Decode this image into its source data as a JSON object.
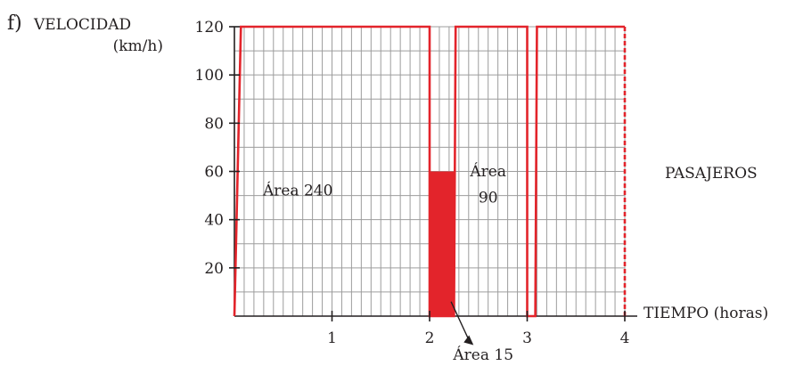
{
  "chart_data": {
    "type": "line",
    "panel_label": "f)",
    "ylabel": "VELOCIDAD",
    "yunit": "(km/h)",
    "xlabel": "TIEMPO (horas)",
    "side_label": "PASAJEROS",
    "xlim": [
      0,
      4
    ],
    "ylim": [
      0,
      120
    ],
    "x_ticks": [
      1,
      2,
      3,
      4
    ],
    "y_ticks": [
      20,
      40,
      60,
      80,
      100,
      120
    ],
    "grid": true,
    "line_color": "#e3242b",
    "fill_color": "#e3242b",
    "axis_color": "#231f20",
    "grid_color": "#9d9d9d",
    "series": [
      {
        "x": [
          0,
          0.0667,
          2.0,
          2.0,
          2.25,
          2.25,
          2.2667,
          3.0,
          3.0,
          3.0167,
          3.0833,
          3.1,
          4.0
        ],
        "y": [
          0,
          120,
          120,
          0,
          0,
          0,
          120,
          120,
          0,
          0,
          0,
          120,
          120
        ]
      }
    ],
    "shaded_region": {
      "x": [
        2.0,
        2.25
      ],
      "y": [
        0,
        60
      ]
    },
    "annotations": [
      {
        "text": "Área 240",
        "x": 0.65,
        "y": 50
      },
      {
        "text": "Área",
        "x": 2.6,
        "y": 58
      },
      {
        "text": "90",
        "x": 2.6,
        "y": 47
      },
      {
        "text": "Área 15",
        "x": 2.55,
        "y": -18
      }
    ]
  }
}
